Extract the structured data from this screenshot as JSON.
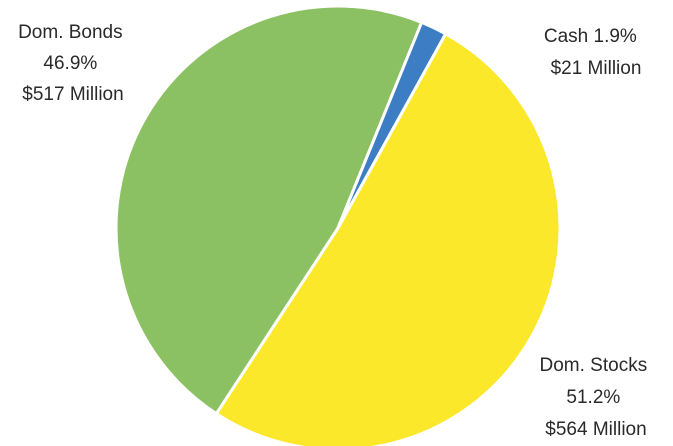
{
  "chart_data": {
    "type": "pie",
    "title": "",
    "slices": [
      {
        "name": "Dom. Stocks",
        "percent_label": "51.2%",
        "value_label": "$564 Million",
        "value": 564,
        "color": "#FCE82A"
      },
      {
        "name": "Dom. Bonds",
        "percent_label": "46.9%",
        "value_label": "$517 Million",
        "value": 517,
        "color": "#8CC163"
      },
      {
        "name": "Cash",
        "percent_label": "1.9%",
        "value_label": "$21 Million",
        "value": 21,
        "color": "#3C7DC3"
      }
    ],
    "legend": "none",
    "separator_color": "#ffffff"
  }
}
